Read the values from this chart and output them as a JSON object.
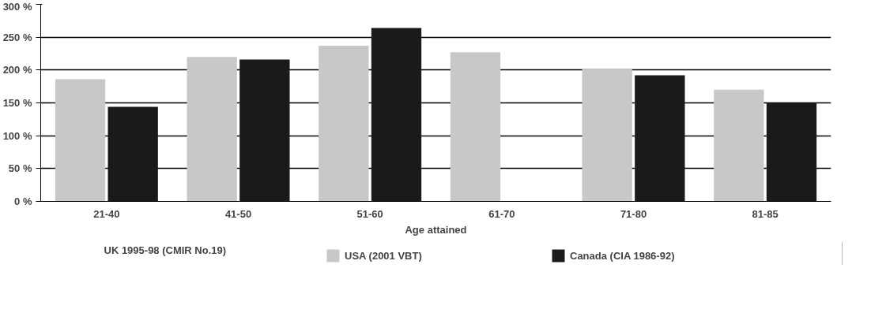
{
  "chart_data": {
    "type": "bar",
    "xlabel": "Age attained",
    "categories": [
      "21-40",
      "41-50",
      "51-60",
      "61-70",
      "71-80",
      "81-85"
    ],
    "series": [
      {
        "name": "USA (2001 VBT)",
        "color": "#c8c8c8",
        "values": [
          186,
          220,
          237,
          227,
          201,
          170
        ]
      },
      {
        "name": "Canada (CIA 1986-92)",
        "color": "#1a1a1a",
        "values": [
          144,
          216,
          264,
          null,
          192,
          150
        ]
      }
    ],
    "ylim": [
      0,
      300
    ],
    "yticks": [
      {
        "value": 0,
        "label": "0 %"
      },
      {
        "value": 50,
        "label": "50 %"
      },
      {
        "value": 100,
        "label": "100 %"
      },
      {
        "value": 150,
        "label": "150 %"
      },
      {
        "value": 200,
        "label": "200 %"
      },
      {
        "value": 250,
        "label": "250 %"
      },
      {
        "value": 300,
        "label": "300 %"
      }
    ],
    "grid": "y",
    "legend": "bottom",
    "annotations": [
      "UK 1995-98 (CMIR No.19)"
    ]
  }
}
